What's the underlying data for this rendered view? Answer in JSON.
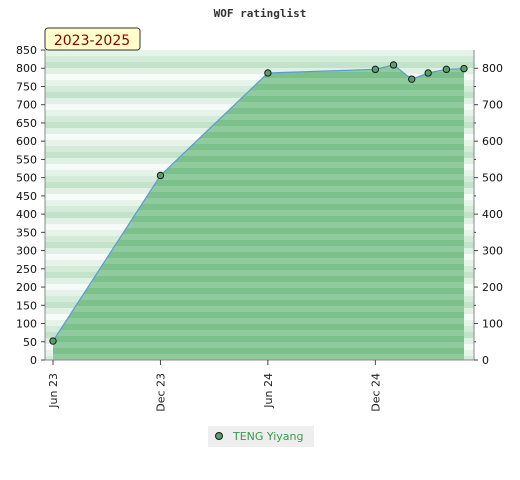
{
  "chart_data": {
    "type": "area",
    "title": "WOF ratinglist",
    "badge": "2023-2025",
    "ylim": [
      0,
      850
    ],
    "yticks_left": [
      "0",
      "50",
      "100",
      "150",
      "200",
      "250",
      "300",
      "350",
      "400",
      "450",
      "500",
      "550",
      "600",
      "650",
      "700",
      "750",
      "800",
      "850"
    ],
    "yticks_right": [
      "0",
      "100",
      "200",
      "300",
      "400",
      "500",
      "600",
      "700",
      "800"
    ],
    "xticks": [
      "Jun 23",
      "Dec 23",
      "Jun 24",
      "Dec 24"
    ],
    "xlim": [
      "2023-06-01",
      "2025-04-15"
    ],
    "series": [
      {
        "name": "TENG Yiyang",
        "points": [
          {
            "x": "2023-06-01",
            "y": 52
          },
          {
            "x": "2023-12-01",
            "y": 506
          },
          {
            "x": "2024-06-01",
            "y": 787
          },
          {
            "x": "2024-12-01",
            "y": 797
          },
          {
            "x": "2025-01-01",
            "y": 809
          },
          {
            "x": "2025-02-01",
            "y": 770
          },
          {
            "x": "2025-03-01",
            "y": 787
          },
          {
            "x": "2025-04-01",
            "y": 797
          },
          {
            "x": "2025-05-01",
            "y": 799
          }
        ]
      }
    ],
    "grid": true,
    "legend_position": "bottom-center",
    "colors": {
      "line": "#5b9bd5",
      "area": "#7ac08a",
      "marker_fill": "#57a06a",
      "badge_fill": "#ffffcc",
      "legend_bg": "#eeeeee"
    }
  }
}
